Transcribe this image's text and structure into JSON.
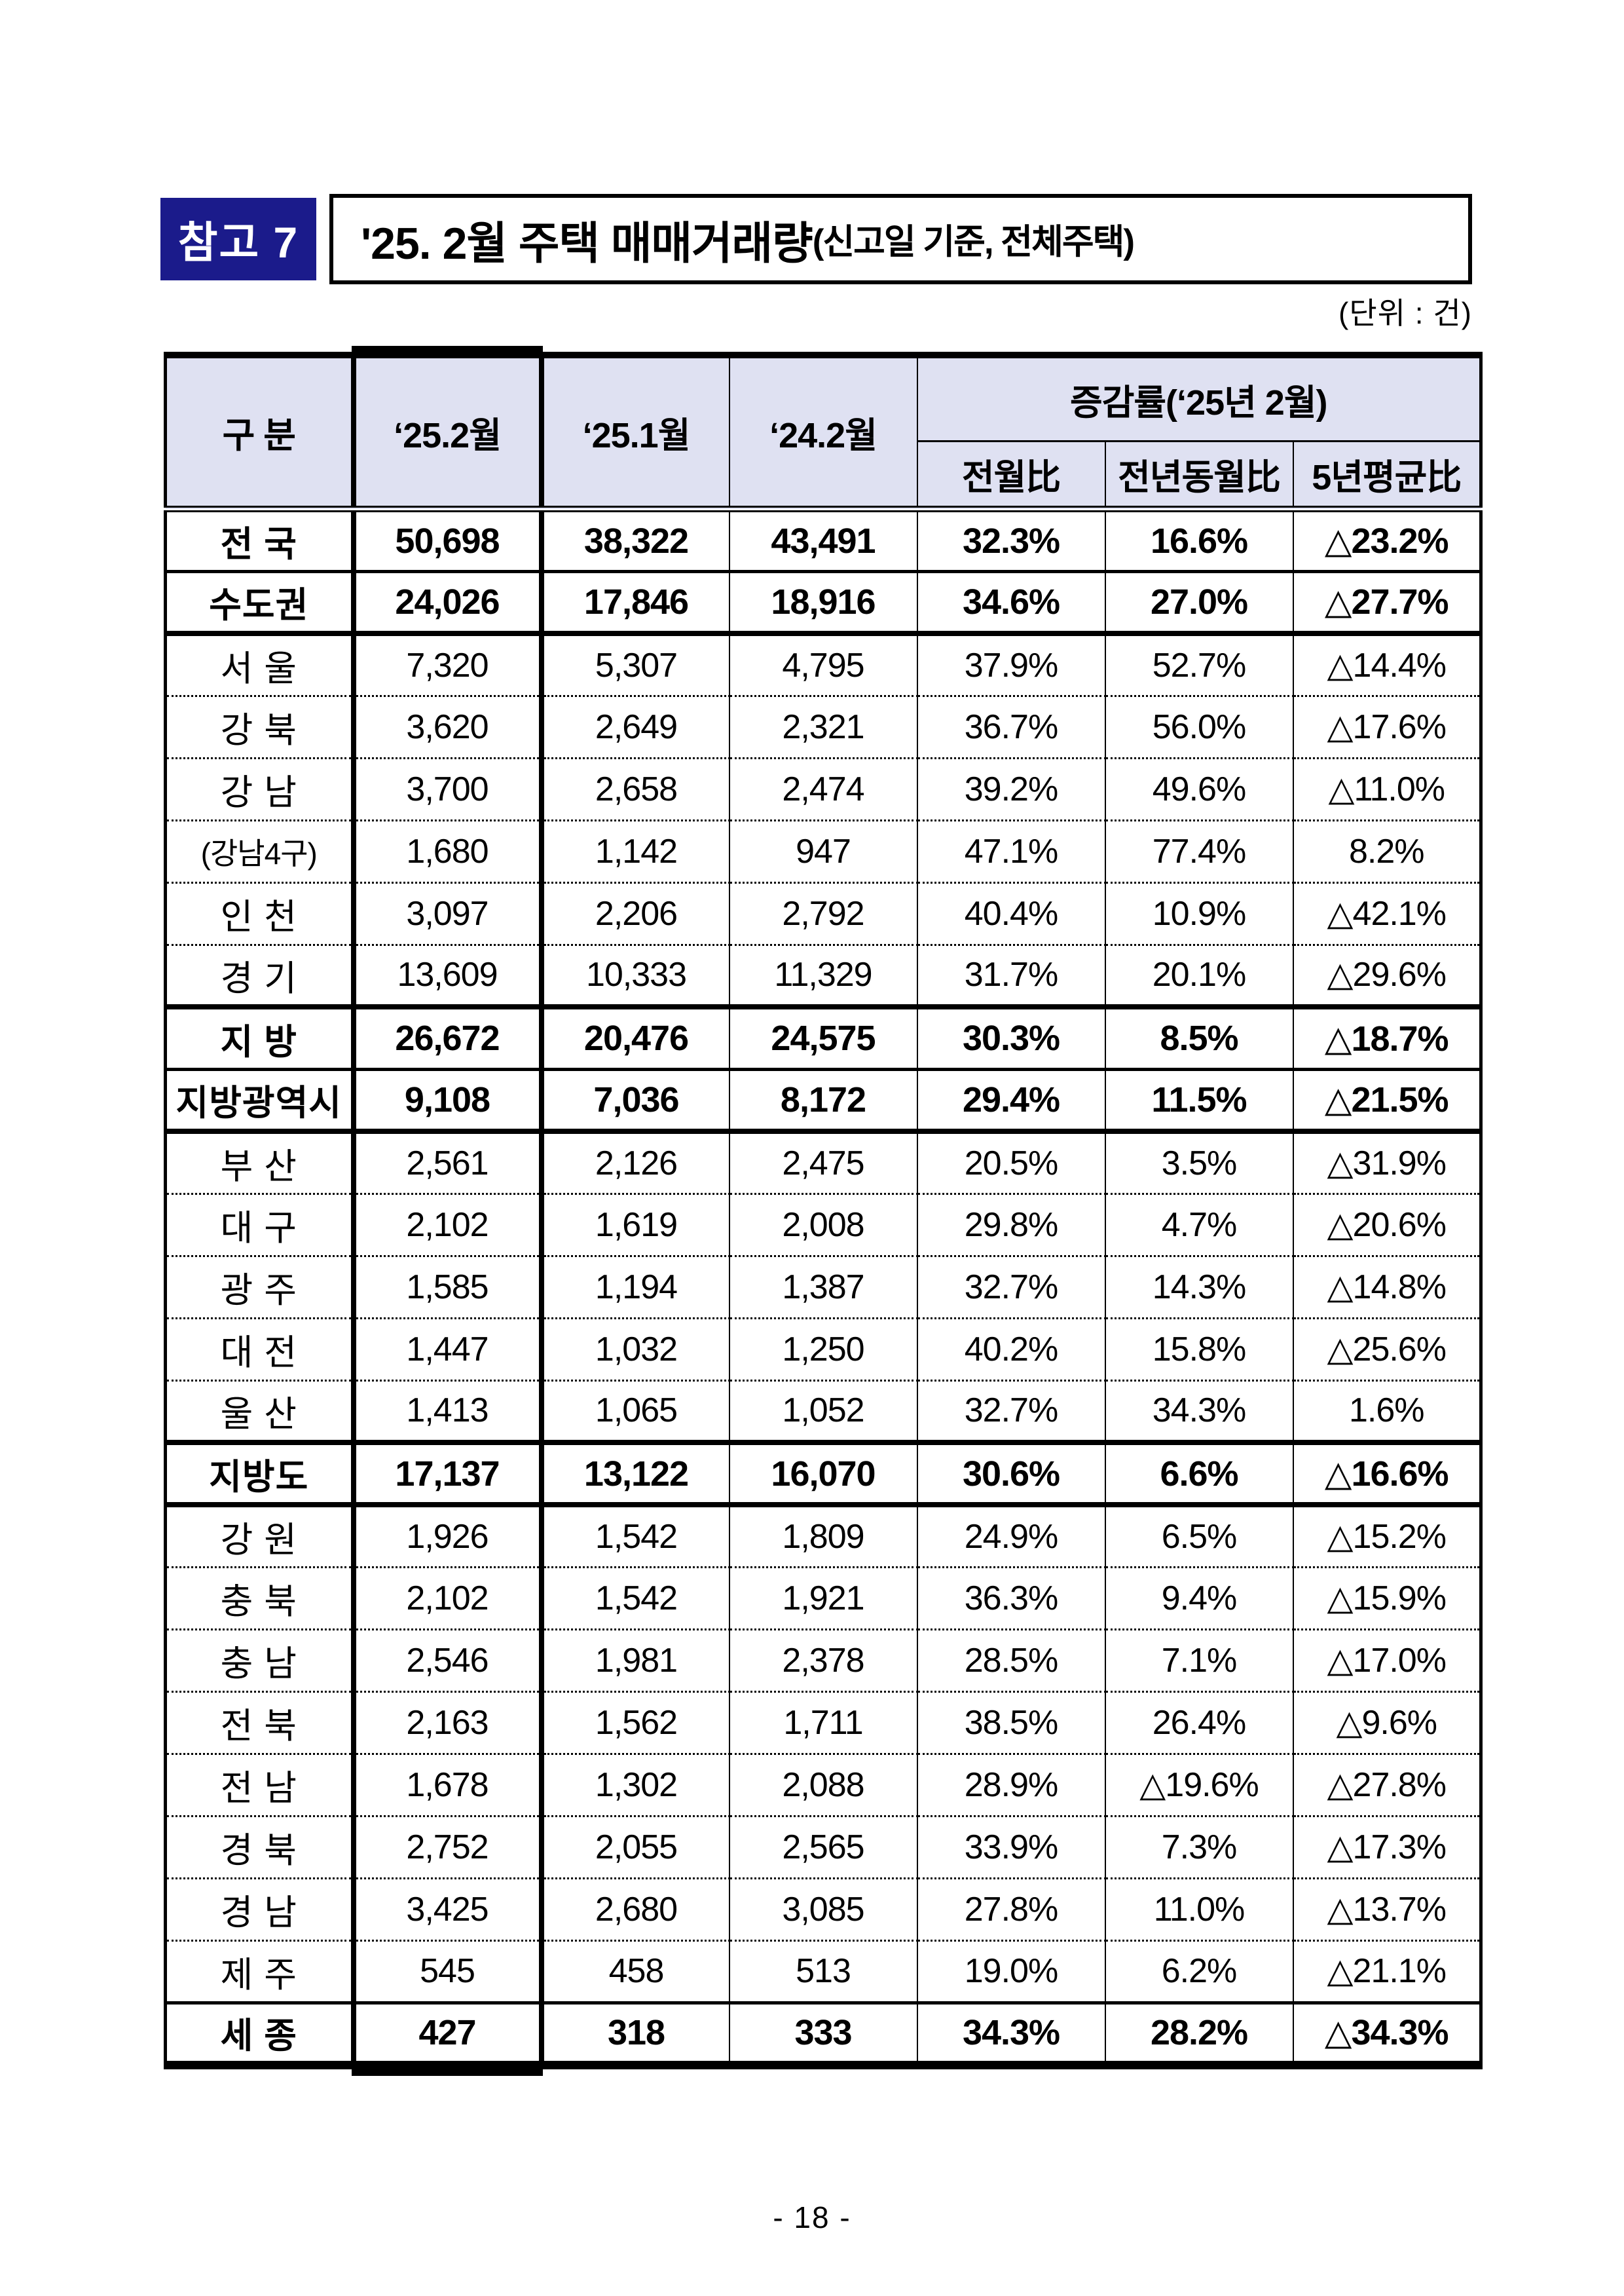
{
  "page": {
    "badge": "참고 7",
    "title_main": "'25. 2월 주택 매매거래량",
    "title_sub": "(신고일 기준, 전체주택)",
    "unit_note": "(단위 : 건)",
    "page_number": "- 18 -"
  },
  "colors": {
    "badge_bg": "#1b1b8b",
    "header_bg": "#dfe1f2"
  },
  "table": {
    "header": {
      "col_category": "구 분",
      "col_2502": "‘25.2월",
      "col_2501": "‘25.1월",
      "col_2402": "‘24.2월",
      "change_group": "증감률(‘25년 2월)",
      "change_cols": [
        "전월比",
        "전년동월比",
        "5년평균比"
      ]
    },
    "rows": [
      {
        "label": "전 국",
        "values": [
          "50,698",
          "38,322",
          "43,491",
          "32.3%",
          "16.6%",
          "△23.2%"
        ],
        "bold": true,
        "divider": "none"
      },
      {
        "label": "수도권",
        "values": [
          "24,026",
          "17,846",
          "18,916",
          "34.6%",
          "27.0%",
          "△27.7%"
        ],
        "bold": true,
        "divider": "solid"
      },
      {
        "label": "서 울",
        "values": [
          "7,320",
          "5,307",
          "4,795",
          "37.9%",
          "52.7%",
          "△14.4%"
        ],
        "bold": false,
        "divider": "thick"
      },
      {
        "label": "강 북",
        "values": [
          "3,620",
          "2,649",
          "2,321",
          "36.7%",
          "56.0%",
          "△17.6%"
        ],
        "bold": false,
        "divider": "dotted"
      },
      {
        "label": "강 남",
        "values": [
          "3,700",
          "2,658",
          "2,474",
          "39.2%",
          "49.6%",
          "△11.0%"
        ],
        "bold": false,
        "divider": "dotted"
      },
      {
        "label": "(강남4구)",
        "values": [
          "1,680",
          "1,142",
          "947",
          "47.1%",
          "77.4%",
          "8.2%"
        ],
        "bold": false,
        "divider": "dotted",
        "small_label": true
      },
      {
        "label": "인 천",
        "values": [
          "3,097",
          "2,206",
          "2,792",
          "40.4%",
          "10.9%",
          "△42.1%"
        ],
        "bold": false,
        "divider": "dotted"
      },
      {
        "label": "경 기",
        "values": [
          "13,609",
          "10,333",
          "11,329",
          "31.7%",
          "20.1%",
          "△29.6%"
        ],
        "bold": false,
        "divider": "dotted"
      },
      {
        "label": "지 방",
        "values": [
          "26,672",
          "20,476",
          "24,575",
          "30.3%",
          "8.5%",
          "△18.7%"
        ],
        "bold": true,
        "divider": "thick"
      },
      {
        "label": "지방광역시",
        "values": [
          "9,108",
          "7,036",
          "8,172",
          "29.4%",
          "11.5%",
          "△21.5%"
        ],
        "bold": true,
        "divider": "solid"
      },
      {
        "label": "부 산",
        "values": [
          "2,561",
          "2,126",
          "2,475",
          "20.5%",
          "3.5%",
          "△31.9%"
        ],
        "bold": false,
        "divider": "thick"
      },
      {
        "label": "대 구",
        "values": [
          "2,102",
          "1,619",
          "2,008",
          "29.8%",
          "4.7%",
          "△20.6%"
        ],
        "bold": false,
        "divider": "dotted"
      },
      {
        "label": "광 주",
        "values": [
          "1,585",
          "1,194",
          "1,387",
          "32.7%",
          "14.3%",
          "△14.8%"
        ],
        "bold": false,
        "divider": "dotted"
      },
      {
        "label": "대 전",
        "values": [
          "1,447",
          "1,032",
          "1,250",
          "40.2%",
          "15.8%",
          "△25.6%"
        ],
        "bold": false,
        "divider": "dotted"
      },
      {
        "label": "울 산",
        "values": [
          "1,413",
          "1,065",
          "1,052",
          "32.7%",
          "34.3%",
          "1.6%"
        ],
        "bold": false,
        "divider": "dotted"
      },
      {
        "label": "지방도",
        "values": [
          "17,137",
          "13,122",
          "16,070",
          "30.6%",
          "6.6%",
          "△16.6%"
        ],
        "bold": true,
        "divider": "thick"
      },
      {
        "label": "강 원",
        "values": [
          "1,926",
          "1,542",
          "1,809",
          "24.9%",
          "6.5%",
          "△15.2%"
        ],
        "bold": false,
        "divider": "thick"
      },
      {
        "label": "충 북",
        "values": [
          "2,102",
          "1,542",
          "1,921",
          "36.3%",
          "9.4%",
          "△15.9%"
        ],
        "bold": false,
        "divider": "dotted"
      },
      {
        "label": "충 남",
        "values": [
          "2,546",
          "1,981",
          "2,378",
          "28.5%",
          "7.1%",
          "△17.0%"
        ],
        "bold": false,
        "divider": "dotted"
      },
      {
        "label": "전 북",
        "values": [
          "2,163",
          "1,562",
          "1,711",
          "38.5%",
          "26.4%",
          "△9.6%"
        ],
        "bold": false,
        "divider": "dotted"
      },
      {
        "label": "전 남",
        "values": [
          "1,678",
          "1,302",
          "2,088",
          "28.9%",
          "△19.6%",
          "△27.8%"
        ],
        "bold": false,
        "divider": "dotted"
      },
      {
        "label": "경 북",
        "values": [
          "2,752",
          "2,055",
          "2,565",
          "33.9%",
          "7.3%",
          "△17.3%"
        ],
        "bold": false,
        "divider": "dotted"
      },
      {
        "label": "경 남",
        "values": [
          "3,425",
          "2,680",
          "3,085",
          "27.8%",
          "11.0%",
          "△13.7%"
        ],
        "bold": false,
        "divider": "dotted"
      },
      {
        "label": "제 주",
        "values": [
          "545",
          "458",
          "513",
          "19.0%",
          "6.2%",
          "△21.1%"
        ],
        "bold": false,
        "divider": "dotted"
      },
      {
        "label": "세 종",
        "values": [
          "427",
          "318",
          "333",
          "34.3%",
          "28.2%",
          "△34.3%"
        ],
        "bold": true,
        "divider": "solid"
      }
    ]
  }
}
